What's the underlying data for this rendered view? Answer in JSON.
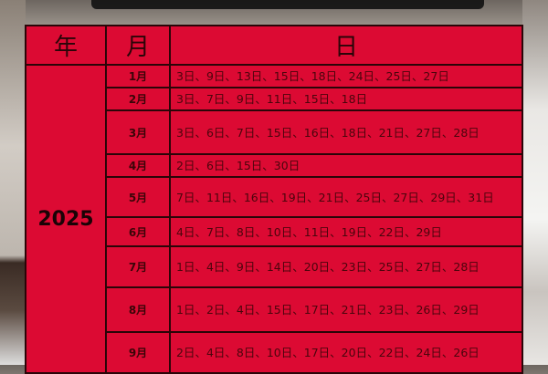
{
  "table": {
    "headers": {
      "year": "年",
      "month": "月",
      "day": "日"
    },
    "year": "2025",
    "rows": [
      {
        "month": "1月",
        "days": "3日、9日、13日、15日、18日、24日、25日、27日"
      },
      {
        "month": "2月",
        "days": "3日、7日、9日、11日、15日、18日"
      },
      {
        "month": "3月",
        "days": "3日、6日、7日、15日、16日、18日、21日、27日、28日"
      },
      {
        "month": "4月",
        "days": "2日、6日、15日、30日"
      },
      {
        "month": "5月",
        "days": "7日、11日、16日、19日、21日、25日、27日、29日、31日"
      },
      {
        "month": "6月",
        "days": "4日、7日、8日、10日、11日、19日、22日、29日"
      },
      {
        "month": "7月",
        "days": "1日、4日、9日、14日、20日、23日、25日、27日、28日"
      },
      {
        "month": "8月",
        "days": "1日、2日、4日、15日、17日、21日、23日、26日、29日"
      },
      {
        "month": "9月",
        "days": "2日、4日、8日、10日、17日、20日、22日、24日、26日"
      }
    ]
  },
  "colors": {
    "table_bg": "#dc0a33",
    "border": "#2a0508"
  }
}
